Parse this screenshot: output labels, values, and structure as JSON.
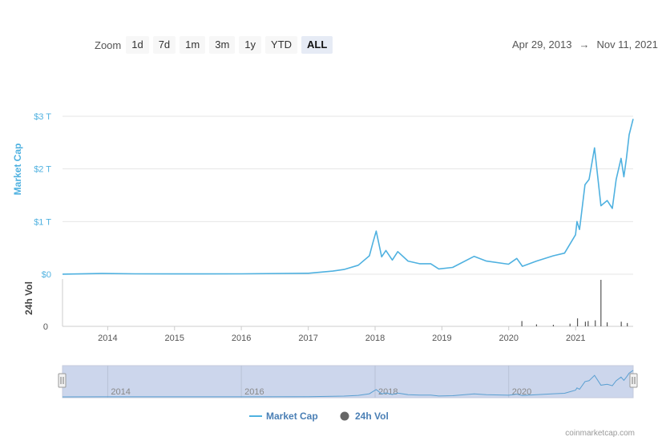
{
  "toolbar": {
    "zoom_label": "Zoom",
    "buttons": [
      "1d",
      "7d",
      "1m",
      "3m",
      "1y",
      "YTD",
      "ALL"
    ],
    "active": "ALL"
  },
  "date_range": {
    "from": "Apr 29, 2013",
    "arrow": "→",
    "to": "Nov 11, 2021"
  },
  "credit": "coinmarketcap.com",
  "colors": {
    "market_cap": "#4fb1e0",
    "volume": "#555555",
    "navigator_fill": "#ccd6ec"
  },
  "chart_data": {
    "type": "line",
    "x_range": [
      "2013-04-29",
      "2021-11-11"
    ],
    "x_ticks": [
      "2014",
      "2015",
      "2016",
      "2017",
      "2018",
      "2019",
      "2020",
      "2021"
    ],
    "navigator_ticks": [
      "2014",
      "2016",
      "2018",
      "2020"
    ],
    "y_axes": [
      {
        "label": "Market Cap",
        "ticks": [
          "$0",
          "$1 T",
          "$2 T",
          "$3 T"
        ],
        "ylim": [
          0,
          3
        ]
      },
      {
        "label": "24h Vol",
        "ticks": [
          "0"
        ]
      }
    ],
    "series": [
      {
        "name": "Market Cap",
        "unit": "T",
        "x": [
          "2013-04-29",
          "2013-12-01",
          "2014-06-01",
          "2015-01-01",
          "2016-01-01",
          "2017-01-01",
          "2017-05-15",
          "2017-07-15",
          "2017-10-01",
          "2017-12-01",
          "2017-12-20",
          "2018-01-07",
          "2018-02-06",
          "2018-03-01",
          "2018-04-05",
          "2018-05-05",
          "2018-06-30",
          "2018-09-01",
          "2018-11-01",
          "2018-12-15",
          "2019-03-01",
          "2019-06-26",
          "2019-09-01",
          "2019-12-31",
          "2020-02-14",
          "2020-03-16",
          "2020-06-01",
          "2020-09-01",
          "2020-11-01",
          "2020-12-31",
          "2021-01-08",
          "2021-01-22",
          "2021-02-21",
          "2021-03-15",
          "2021-04-14",
          "2021-05-19",
          "2021-06-22",
          "2021-07-20",
          "2021-08-10",
          "2021-09-06",
          "2021-09-21",
          "2021-10-05",
          "2021-10-20",
          "2021-11-11"
        ],
        "values": [
          0.002,
          0.013,
          0.008,
          0.006,
          0.007,
          0.018,
          0.06,
          0.09,
          0.17,
          0.35,
          0.6,
          0.82,
          0.33,
          0.45,
          0.27,
          0.43,
          0.25,
          0.2,
          0.2,
          0.1,
          0.13,
          0.34,
          0.25,
          0.19,
          0.3,
          0.15,
          0.25,
          0.35,
          0.4,
          0.75,
          1.0,
          0.85,
          1.7,
          1.8,
          2.4,
          1.3,
          1.4,
          1.25,
          1.8,
          2.2,
          1.85,
          2.2,
          2.65,
          2.95
        ]
      },
      {
        "name": "24h Vol",
        "unit": "B",
        "x": [
          "2020-03-13",
          "2020-06-01",
          "2020-09-01",
          "2020-12-01",
          "2021-01-11",
          "2021-02-23",
          "2021-03-10",
          "2021-04-18",
          "2021-05-19",
          "2021-06-22",
          "2021-09-07",
          "2021-10-10"
        ],
        "values": [
          40,
          15,
          12,
          20,
          60,
          35,
          40,
          45,
          350,
          30,
          35,
          25
        ]
      }
    ],
    "legend": {
      "placement": "bottom",
      "entries": [
        "Market Cap",
        "24h Vol"
      ]
    },
    "grid": true,
    "navigator": true
  }
}
